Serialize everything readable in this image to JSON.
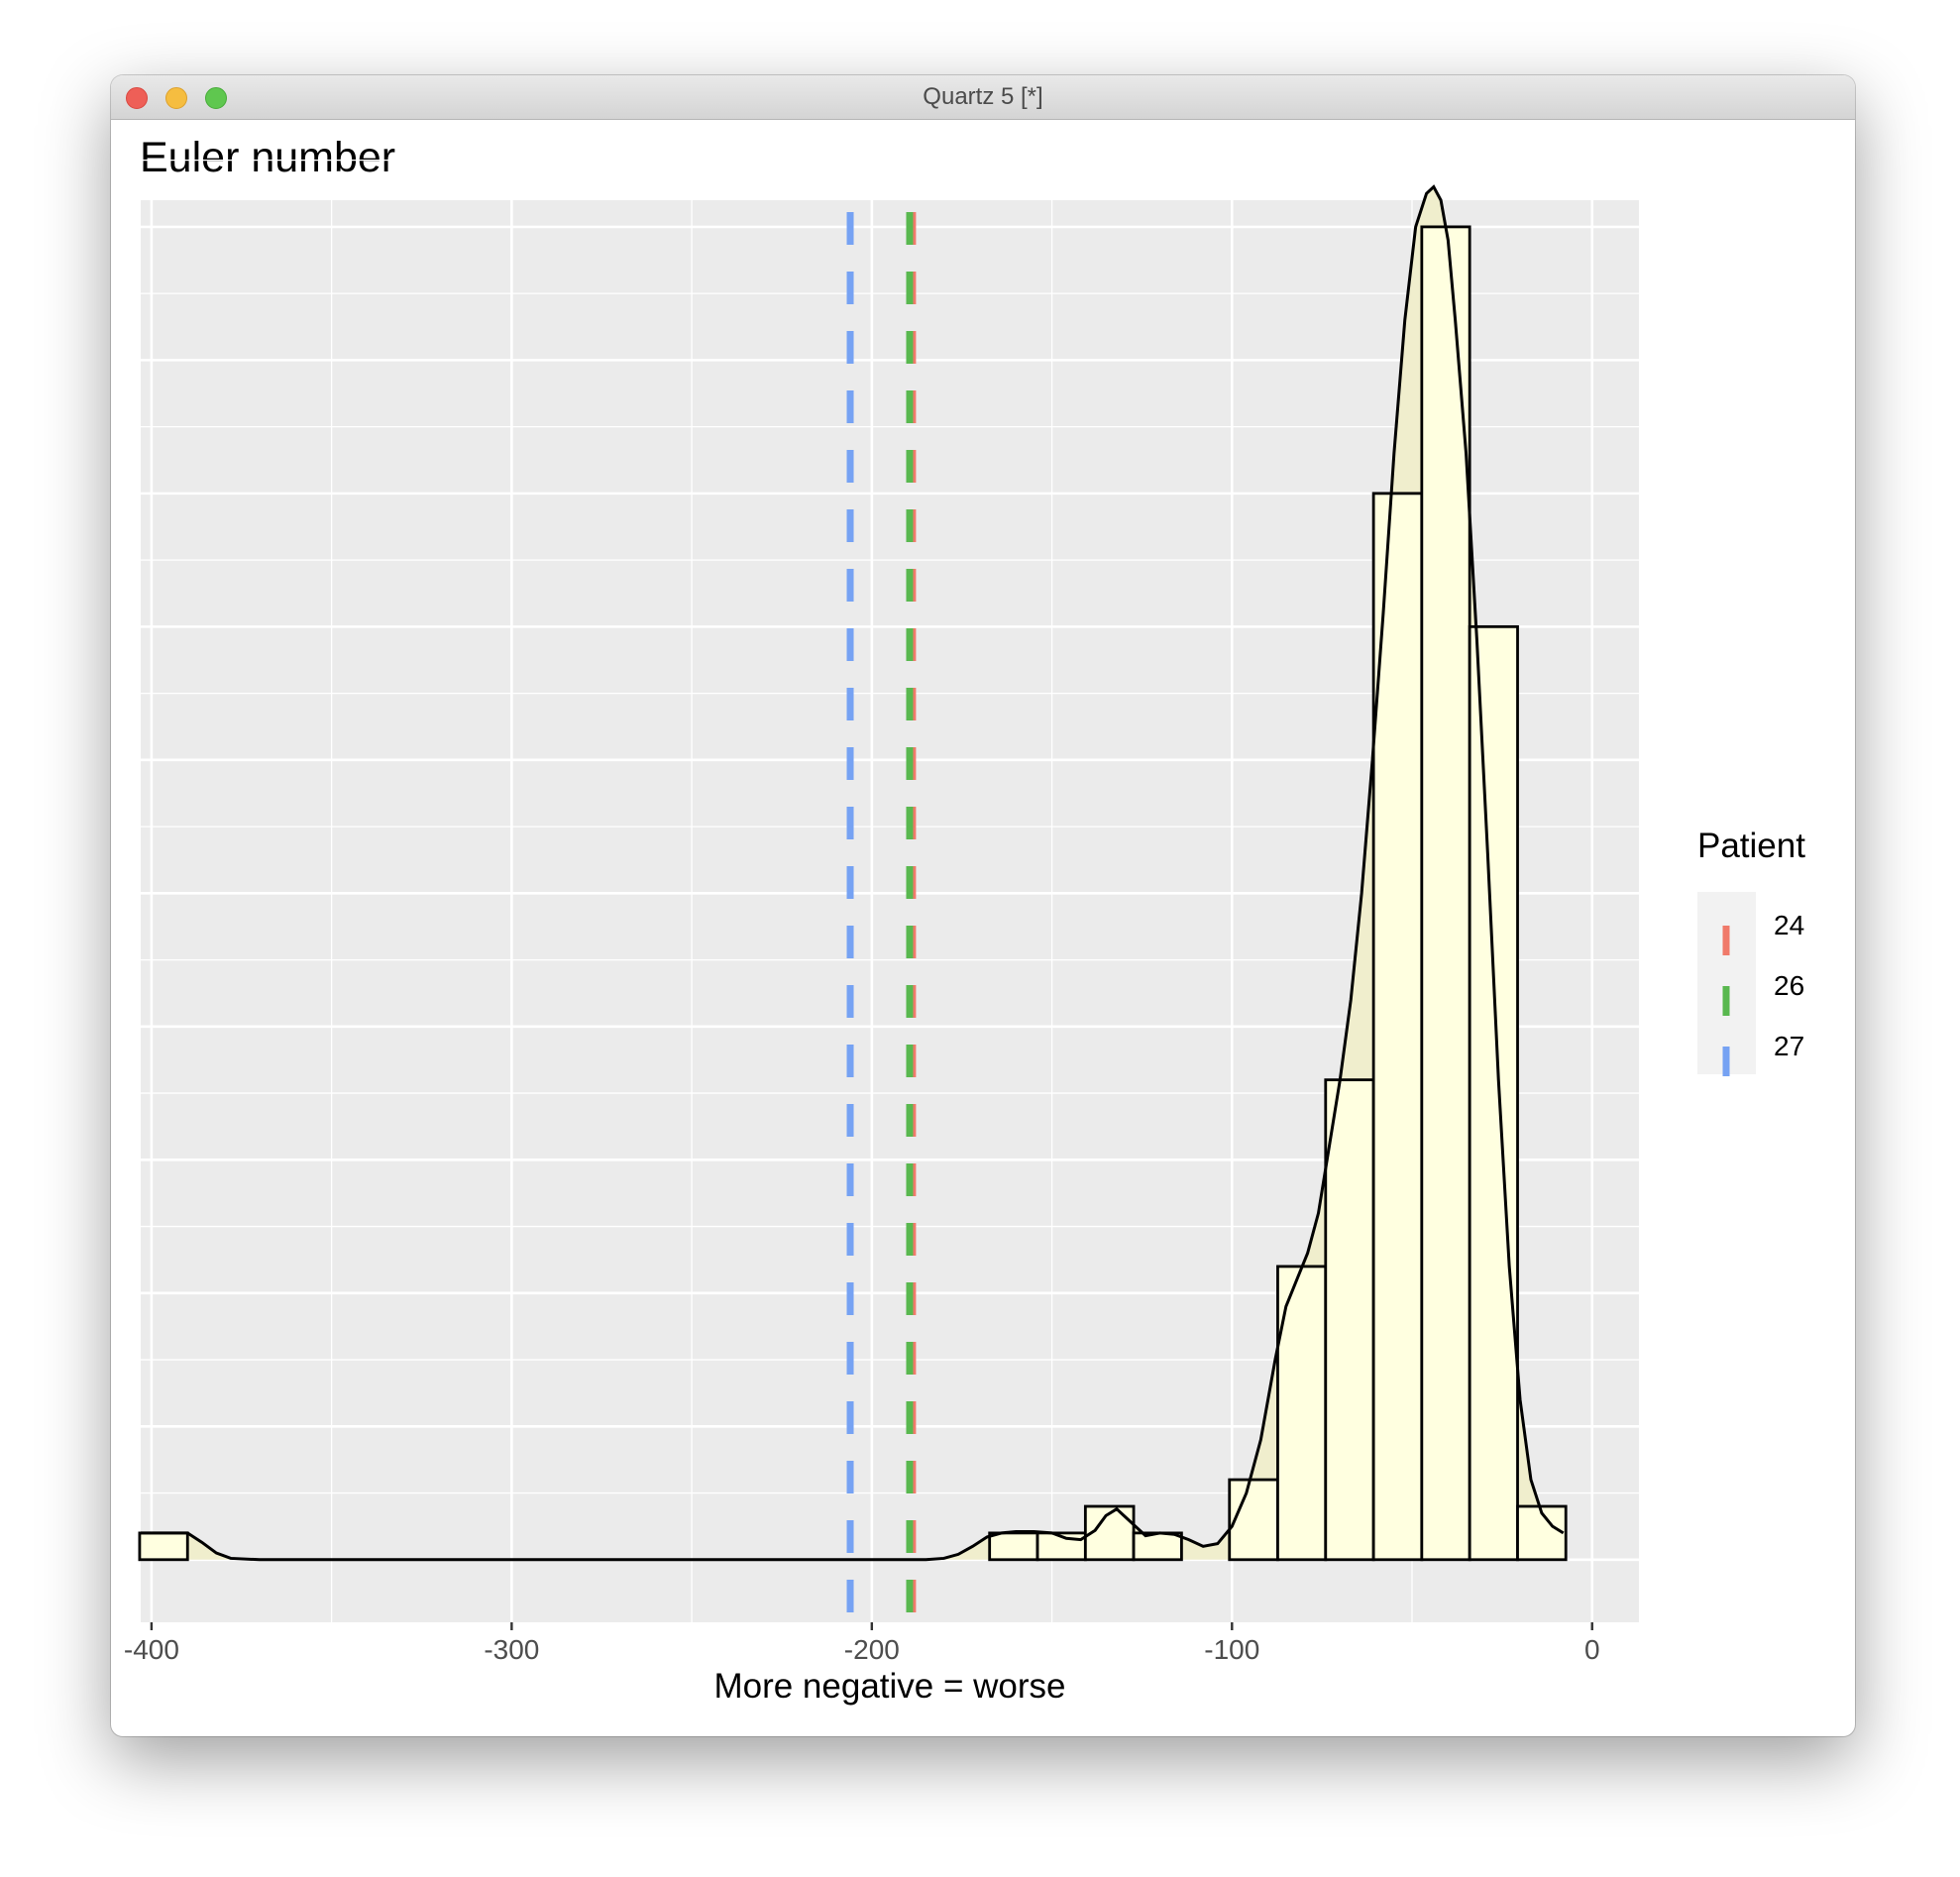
{
  "window": {
    "title": "Quartz 5 [*]"
  },
  "chart_data": {
    "type": "bar",
    "title": "Euler number",
    "xlabel": "More negative = worse",
    "ylabel": "",
    "x_ticks": [
      -400,
      -300,
      -200,
      -100,
      0
    ],
    "xlim": [
      -403,
      13
    ],
    "ylim": [
      -0.47,
      10.2
    ],
    "y_gridlines": [
      0,
      1,
      2,
      3,
      4,
      5,
      6,
      7,
      8,
      9,
      10
    ],
    "y_labels_shown": false,
    "grid": true,
    "bin_width": 13.3,
    "histogram": {
      "bins": [
        {
          "x0": -403.3,
          "x1": -390.0,
          "count": 0.2
        },
        {
          "x0": -167.3,
          "x1": -154.0,
          "count": 0.2
        },
        {
          "x0": -154.0,
          "x1": -140.7,
          "count": 0.2
        },
        {
          "x0": -140.7,
          "x1": -127.3,
          "count": 0.4
        },
        {
          "x0": -127.3,
          "x1": -114.0,
          "count": 0.2
        },
        {
          "x0": -100.7,
          "x1": -87.3,
          "count": 0.6
        },
        {
          "x0": -87.3,
          "x1": -74.0,
          "count": 2.2
        },
        {
          "x0": -74.0,
          "x1": -60.7,
          "count": 3.6
        },
        {
          "x0": -60.7,
          "x1": -47.3,
          "count": 8.0
        },
        {
          "x0": -47.3,
          "x1": -34.0,
          "count": 10.0
        },
        {
          "x0": -34.0,
          "x1": -20.7,
          "count": 7.0
        },
        {
          "x0": -20.7,
          "x1": -7.3,
          "count": 0.4
        }
      ],
      "fill": "#ffffe0",
      "stroke": "#000000"
    },
    "density": {
      "x": [
        -403,
        -398,
        -394,
        -390,
        -386,
        -382,
        -378,
        -370,
        -350,
        -250,
        -185,
        -180,
        -176,
        -172,
        -168,
        -164,
        -160,
        -155,
        -150,
        -146,
        -142,
        -138,
        -135,
        -132,
        -128,
        -124,
        -120,
        -116,
        -112,
        -108,
        -104,
        -100,
        -96,
        -92,
        -88,
        -85,
        -82,
        -79,
        -76,
        -73,
        -70,
        -67,
        -64,
        -61,
        -58,
        -55,
        -52,
        -49,
        -46,
        -44,
        -42,
        -40,
        -38,
        -35,
        -32,
        -29,
        -26,
        -23,
        -20,
        -17,
        -14,
        -11,
        -8
      ],
      "y": [
        0.2,
        0.2,
        0.2,
        0.2,
        0.13,
        0.05,
        0.01,
        0.0,
        0.0,
        0.0,
        0.0,
        0.01,
        0.04,
        0.1,
        0.17,
        0.2,
        0.21,
        0.21,
        0.2,
        0.16,
        0.15,
        0.22,
        0.33,
        0.38,
        0.28,
        0.18,
        0.2,
        0.19,
        0.15,
        0.1,
        0.12,
        0.25,
        0.5,
        0.9,
        1.5,
        1.9,
        2.1,
        2.3,
        2.6,
        3.1,
        3.6,
        4.2,
        5.0,
        6.0,
        7.1,
        8.3,
        9.3,
        10.0,
        10.25,
        10.3,
        10.2,
        9.9,
        9.3,
        8.3,
        6.9,
        5.3,
        3.6,
        2.2,
        1.2,
        0.6,
        0.35,
        0.25,
        0.2
      ],
      "fill": "#f0eecd",
      "stroke": "#000000"
    },
    "vlines": [
      {
        "label": "24",
        "x": -188.7,
        "color": "#f07a6a"
      },
      {
        "label": "26",
        "x": -189.5,
        "color": "#59b84f"
      },
      {
        "label": "27",
        "x": -206,
        "color": "#76a2f3"
      }
    ],
    "legend": {
      "title": "Patient",
      "position": "right",
      "items": [
        {
          "label": "24",
          "color": "#f07a6a"
        },
        {
          "label": "26",
          "color": "#59b84f"
        },
        {
          "label": "27",
          "color": "#76a2f3"
        }
      ]
    }
  }
}
